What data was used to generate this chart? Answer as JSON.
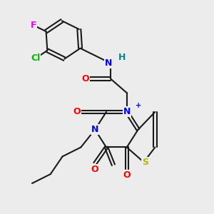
{
  "background_color": "#ececec",
  "bond_color": "#1a1a1a",
  "atom_colors": {
    "N": "#0000ff",
    "O": "#ff0000",
    "S": "#b8b800",
    "Cl": "#00bb00",
    "F": "#ee00ee",
    "H": "#008888",
    "C": "#1a1a1a"
  },
  "figsize": [
    3.0,
    3.0
  ],
  "dpi": 100
}
